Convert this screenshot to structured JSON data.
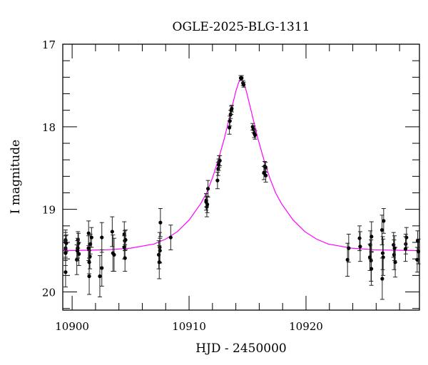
{
  "chart_data": {
    "type": "scatter",
    "title": "OGLE-2025-BLG-1311",
    "xlabel": "HJD - 2450000",
    "ylabel": "I magnitude",
    "xlim": [
      10899.2,
      10929.7
    ],
    "ylim": [
      20.22,
      17
    ],
    "y_inverted": true,
    "x_ticks": [
      10900,
      10910,
      10920
    ],
    "y_ticks": [
      17,
      18,
      19,
      20
    ],
    "x_minor_step": 2,
    "y_minor_step": 0.2,
    "grid": false,
    "colors": {
      "points": "#000000",
      "model": "#ff00ff"
    },
    "points": [
      [
        10899.44,
        19.37,
        0.12
      ],
      [
        10899.44,
        19.4,
        0.12
      ],
      [
        10899.44,
        19.47,
        0.15
      ],
      [
        10899.5,
        19.41,
        0.1
      ],
      [
        10899.44,
        19.76,
        0.18
      ],
      [
        10899.44,
        19.53,
        0.15
      ],
      [
        10900.4,
        19.61,
        0.18
      ],
      [
        10900.5,
        19.37,
        0.1
      ],
      [
        10900.54,
        19.41,
        0.12
      ],
      [
        10900.58,
        19.54,
        0.14
      ],
      [
        10900.47,
        19.47,
        0.12
      ],
      [
        10900.44,
        19.5,
        0.12
      ],
      [
        10901.41,
        19.29,
        0.15
      ],
      [
        10901.46,
        19.81,
        0.22
      ],
      [
        10901.52,
        19.57,
        0.15
      ],
      [
        10901.56,
        19.42,
        0.12
      ],
      [
        10901.66,
        19.34,
        0.12
      ],
      [
        10901.4,
        19.47,
        0.15
      ],
      [
        10901.46,
        19.64,
        0.14
      ],
      [
        10902.37,
        19.81,
        0.25
      ],
      [
        10902.54,
        19.71,
        0.22
      ],
      [
        10902.54,
        19.34,
        0.18
      ],
      [
        10903.43,
        19.27,
        0.18
      ],
      [
        10903.49,
        19.53,
        0.22
      ],
      [
        10903.59,
        19.55,
        0.2
      ],
      [
        10904.46,
        19.3,
        0.15
      ],
      [
        10904.5,
        19.38,
        0.12
      ],
      [
        10904.57,
        19.37,
        0.12
      ],
      [
        10904.46,
        19.46,
        0.14
      ],
      [
        10904.52,
        19.59,
        0.16
      ],
      [
        10907.55,
        19.16,
        0.17
      ],
      [
        10907.49,
        19.46,
        0.18
      ],
      [
        10907.51,
        19.5,
        0.15
      ],
      [
        10907.41,
        19.55,
        0.17
      ],
      [
        10907.45,
        19.64,
        0.2
      ],
      [
        10908.43,
        19.34,
        0.15
      ],
      [
        10911.47,
        18.89,
        0.08
      ],
      [
        10911.52,
        18.97,
        0.12
      ],
      [
        10911.56,
        18.94,
        0.1
      ],
      [
        10911.62,
        18.75,
        0.1
      ],
      [
        10911.46,
        18.91,
        0.1
      ],
      [
        10912.43,
        18.65,
        0.1
      ],
      [
        10912.49,
        18.51,
        0.08
      ],
      [
        10912.57,
        18.42,
        0.07
      ],
      [
        10912.63,
        18.41,
        0.06
      ],
      [
        10912.53,
        18.46,
        0.07
      ],
      [
        10913.45,
        18.01,
        0.08
      ],
      [
        10913.49,
        17.93,
        0.06
      ],
      [
        10913.55,
        17.85,
        0.05
      ],
      [
        10913.61,
        17.8,
        0.05
      ],
      [
        10913.65,
        17.78,
        0.04
      ],
      [
        10914.42,
        17.41,
        0.03
      ],
      [
        10914.5,
        17.41,
        0.03
      ],
      [
        10914.61,
        17.47,
        0.03
      ],
      [
        10914.67,
        17.49,
        0.03
      ],
      [
        10915.44,
        18.0,
        0.04
      ],
      [
        10915.5,
        18.03,
        0.04
      ],
      [
        10915.58,
        18.08,
        0.05
      ],
      [
        10915.64,
        18.1,
        0.05
      ],
      [
        10916.46,
        18.48,
        0.06
      ],
      [
        10916.54,
        18.49,
        0.06
      ],
      [
        10916.4,
        18.56,
        0.08
      ],
      [
        10916.56,
        18.59,
        0.08
      ],
      [
        10923.55,
        19.61,
        0.2
      ],
      [
        10923.65,
        19.47,
        0.17
      ],
      [
        10924.58,
        19.35,
        0.15
      ],
      [
        10924.63,
        19.45,
        0.18
      ],
      [
        10925.5,
        19.43,
        0.17
      ],
      [
        10925.6,
        19.33,
        0.18
      ],
      [
        10925.46,
        19.58,
        0.16
      ],
      [
        10925.56,
        19.62,
        0.25
      ],
      [
        10925.59,
        19.72,
        0.2
      ],
      [
        10926.64,
        19.14,
        0.15
      ],
      [
        10926.5,
        19.25,
        0.18
      ],
      [
        10926.56,
        19.53,
        0.2
      ],
      [
        10926.6,
        19.58,
        0.22
      ],
      [
        10926.52,
        19.84,
        0.25
      ],
      [
        10927.49,
        19.43,
        0.15
      ],
      [
        10927.53,
        19.55,
        0.18
      ],
      [
        10927.63,
        19.64,
        0.18
      ],
      [
        10927.57,
        19.47,
        0.15
      ],
      [
        10928.53,
        19.42,
        0.12
      ],
      [
        10928.59,
        19.34,
        0.12
      ],
      [
        10928.51,
        19.48,
        0.15
      ],
      [
        10929.55,
        19.38,
        0.12
      ],
      [
        10929.51,
        19.61,
        0.15
      ],
      [
        10929.61,
        19.51,
        0.15
      ]
    ],
    "model": [
      [
        10899.2,
        19.5
      ],
      [
        10903,
        19.49
      ],
      [
        10905,
        19.47
      ],
      [
        10907,
        19.42
      ],
      [
        10908,
        19.36
      ],
      [
        10909,
        19.27
      ],
      [
        10910,
        19.13
      ],
      [
        10911,
        18.93
      ],
      [
        10911.5,
        18.8
      ],
      [
        10912,
        18.62
      ],
      [
        10912.5,
        18.4
      ],
      [
        10913,
        18.15
      ],
      [
        10913.5,
        17.86
      ],
      [
        10914,
        17.57
      ],
      [
        10914.25,
        17.46
      ],
      [
        10914.45,
        17.42
      ],
      [
        10914.65,
        17.46
      ],
      [
        10914.9,
        17.57
      ],
      [
        10915.4,
        17.86
      ],
      [
        10915.9,
        18.15
      ],
      [
        10916.4,
        18.4
      ],
      [
        10916.9,
        18.62
      ],
      [
        10917.4,
        18.8
      ],
      [
        10917.9,
        18.93
      ],
      [
        10918.9,
        19.13
      ],
      [
        10919.9,
        19.27
      ],
      [
        10920.9,
        19.36
      ],
      [
        10921.9,
        19.42
      ],
      [
        10923.9,
        19.47
      ],
      [
        10925.9,
        19.49
      ],
      [
        10929.7,
        19.5
      ]
    ]
  }
}
